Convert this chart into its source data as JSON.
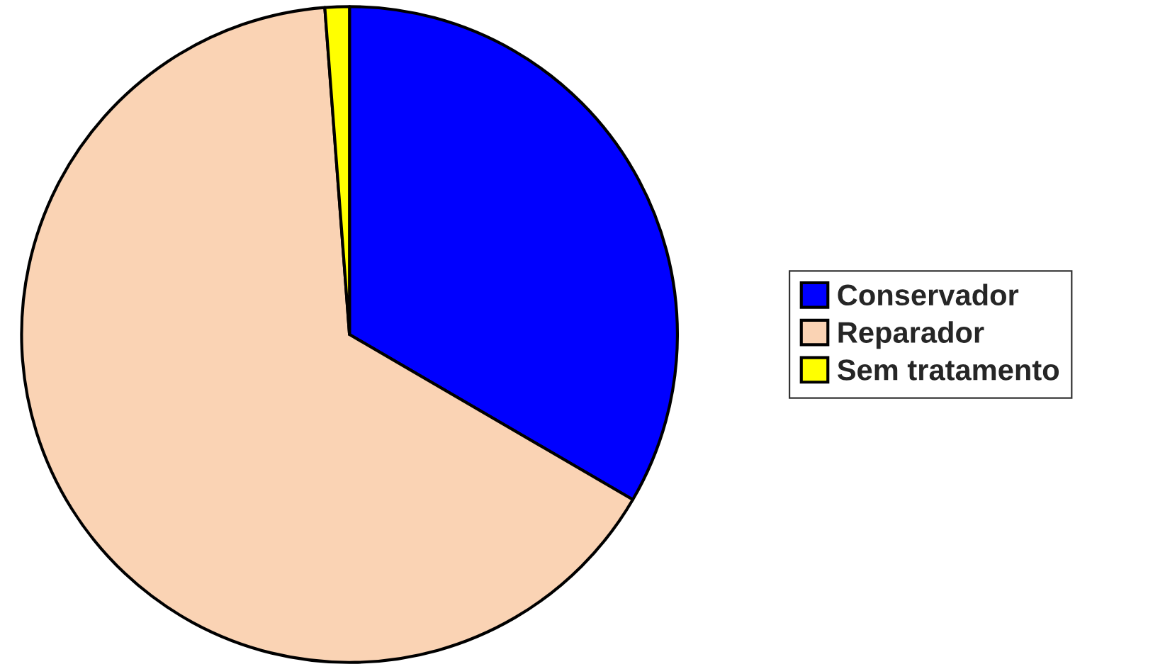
{
  "chart_data": {
    "type": "pie",
    "categories": [
      "Conservador",
      "Reparador",
      "Sem tratamento"
    ],
    "values": [
      33.4,
      65.4,
      1.2
    ],
    "colors": [
      "#0000ff",
      "#fad3b4",
      "#ffff00"
    ],
    "legend": "right"
  }
}
